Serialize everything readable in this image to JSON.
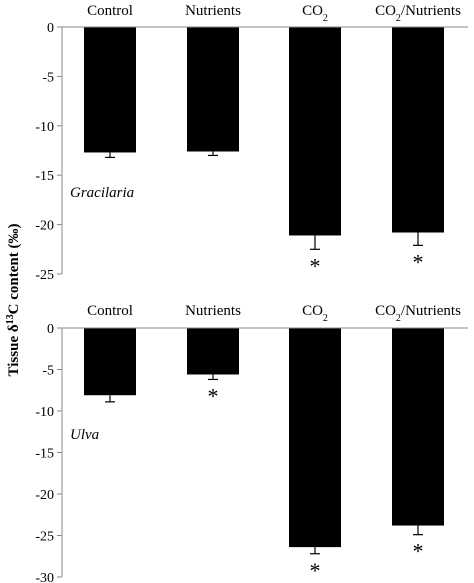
{
  "chart_data": [
    {
      "type": "bar",
      "categories": [
        "Control",
        "Nutrients",
        "CO2",
        "CO2/Nutrients"
      ],
      "values": [
        -12.7,
        -12.6,
        -21.1,
        -20.8
      ],
      "errors": [
        0.5,
        0.4,
        1.4,
        1.3
      ],
      "significant": [
        false,
        false,
        true,
        true
      ],
      "significance_marker": "*",
      "panel_label": "Gracilaria",
      "ylim": [
        -25,
        0
      ],
      "yticks": [
        0,
        -5,
        -10,
        -15,
        -20,
        -25
      ],
      "grid": false
    },
    {
      "type": "bar",
      "categories": [
        "Control",
        "Nutrients",
        "CO2",
        "CO2/Nutrients"
      ],
      "values": [
        -8.1,
        -5.6,
        -26.4,
        -23.8
      ],
      "errors": [
        0.8,
        0.6,
        0.8,
        1.1
      ],
      "significant": [
        false,
        true,
        true,
        true
      ],
      "significance_marker": "*",
      "panel_label": "Ulva",
      "ylim": [
        -30,
        0
      ],
      "yticks": [
        0,
        -5,
        -10,
        -15,
        -20,
        -25,
        -30
      ],
      "grid": false
    }
  ],
  "ylabel": {
    "prefix": "Tissue δ",
    "superscript": "13",
    "suffix": "C content (‰)"
  },
  "colors": {
    "bar": "#000000",
    "axis": "#888888"
  }
}
